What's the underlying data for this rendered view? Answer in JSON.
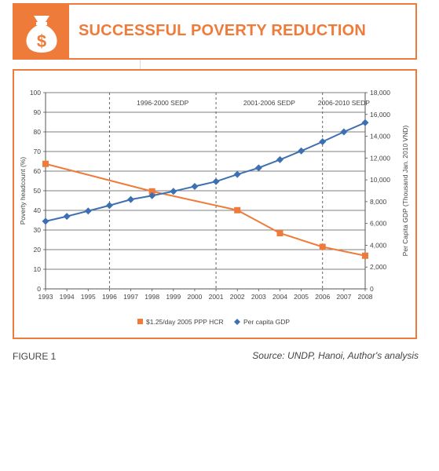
{
  "header": {
    "title": "SUCCESSFUL POVERTY REDUCTION",
    "icon": "money-bag-icon",
    "accent_color": "#ee7b3a"
  },
  "footer": {
    "figure_label": "FIGURE 1",
    "source": "Source: UNDP, Hanoi, Author's analysis"
  },
  "chart_data": {
    "type": "line",
    "xlabel": "",
    "ylabel": "Poverty headcount (%)",
    "y2label": "Per Capita GDP (Thousand Jan. 2010 VND)",
    "categories": [
      "1993",
      "1994",
      "1995",
      "1996",
      "1997",
      "1998",
      "1999",
      "2000",
      "2001",
      "2002",
      "2003",
      "2004",
      "2005",
      "2006",
      "2007",
      "2008"
    ],
    "ylim": [
      0,
      100
    ],
    "y2lim": [
      0,
      18000
    ],
    "yticks": [
      "0",
      "10",
      "20",
      "30",
      "40",
      "50",
      "60",
      "70",
      "80",
      "90",
      "100"
    ],
    "y2ticks": [
      "0",
      "2,000",
      "4,000",
      "6,000",
      "8,000",
      "10,000",
      "12,000",
      "14,000",
      "16,000",
      "18,000"
    ],
    "grid": true,
    "legend_position": "bottom",
    "series": [
      {
        "name": "$1.25/day 2005 PPP HCR",
        "axis": "left",
        "color": "#ee7b3a",
        "marker": "square",
        "points": [
          {
            "x": "1993",
            "y": 63.7
          },
          {
            "x": "1998",
            "y": 49.7
          },
          {
            "x": "2002",
            "y": 40.1
          },
          {
            "x": "2004",
            "y": 28.4
          },
          {
            "x": "2006",
            "y": 21.4
          },
          {
            "x": "2008",
            "y": 16.9
          }
        ]
      },
      {
        "name": "Per capita GDP",
        "axis": "right",
        "color": "#3d70b2",
        "marker": "diamond",
        "points": [
          {
            "x": "1993",
            "y": 6200
          },
          {
            "x": "1994",
            "y": 6650
          },
          {
            "x": "1995",
            "y": 7150
          },
          {
            "x": "1996",
            "y": 7650
          },
          {
            "x": "1997",
            "y": 8200
          },
          {
            "x": "1998",
            "y": 8550
          },
          {
            "x": "1999",
            "y": 8950
          },
          {
            "x": "2000",
            "y": 9400
          },
          {
            "x": "2001",
            "y": 9850
          },
          {
            "x": "2002",
            "y": 10500
          },
          {
            "x": "2003",
            "y": 11100
          },
          {
            "x": "2004",
            "y": 11850
          },
          {
            "x": "2005",
            "y": 12650
          },
          {
            "x": "2006",
            "y": 13500
          },
          {
            "x": "2007",
            "y": 14400
          },
          {
            "x": "2008",
            "y": 15250
          }
        ]
      }
    ],
    "periods": [
      {
        "label": "1996-2000 SEDP",
        "start": "1996",
        "end": "2001"
      },
      {
        "label": "2001-2006 SEDP",
        "start": "2001",
        "end": "2006"
      },
      {
        "label": "2006-2010 SEDP",
        "start": "2006",
        "end": "2008"
      }
    ]
  }
}
